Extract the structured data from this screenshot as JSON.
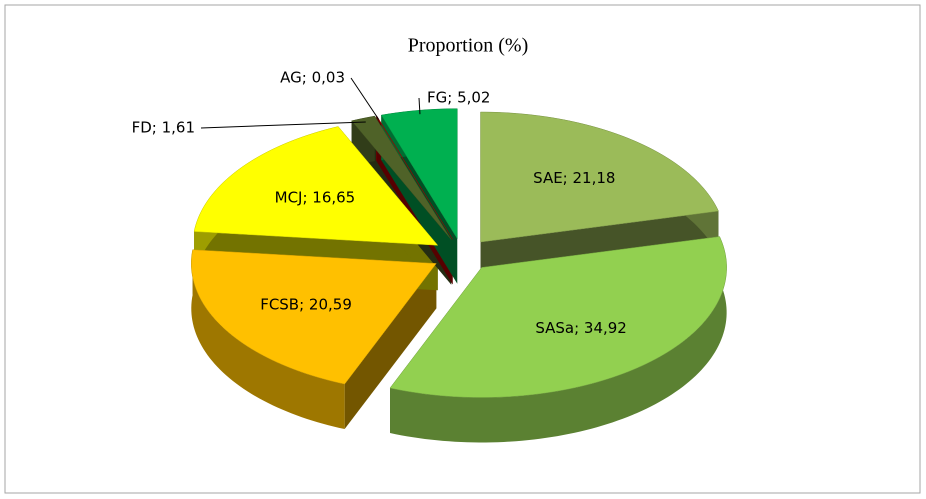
{
  "chart_data": {
    "type": "pie3d",
    "title": "Proportion (%)",
    "values": [
      21.18,
      34.92,
      20.59,
      16.65,
      1.61,
      0.03,
      5.02
    ],
    "value_labels": [
      "SAE; 21,18",
      "SASa; 34,92",
      "FCSB; 20,59",
      "MCJ; 16,65",
      "FD; 1,61",
      "AG; 0,03",
      "FG; 5,02"
    ],
    "colors": [
      "#9bbb59",
      "#92d050",
      "#ffc000",
      "#ffff00",
      "#4f6228",
      "#c00000",
      "#00b050"
    ]
  }
}
